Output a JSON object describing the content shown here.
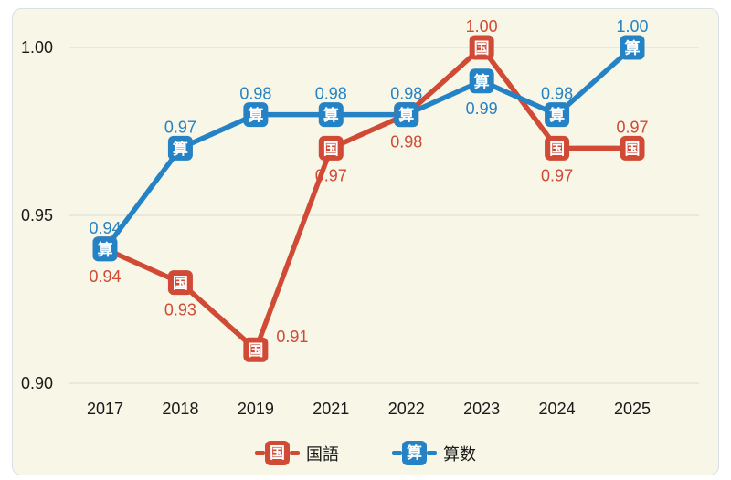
{
  "chart_data": {
    "type": "line",
    "title": "",
    "categories": [
      "2017",
      "2018",
      "2019",
      "2021",
      "2022",
      "2023",
      "2024",
      "2025"
    ],
    "series": [
      {
        "name": "国語",
        "marker_glyph": "国",
        "color": "#D04A35",
        "marker_text_color": "#FFFFFF",
        "values": [
          0.94,
          0.93,
          0.91,
          0.97,
          0.98,
          1.0,
          0.97,
          0.97
        ],
        "label_positions": [
          "below",
          "below",
          "right",
          "below",
          "below",
          "above",
          "below",
          "above"
        ]
      },
      {
        "name": "算数",
        "marker_glyph": "算",
        "color": "#2583C5",
        "marker_text_color": "#FFFFFF",
        "values": [
          0.94,
          0.97,
          0.98,
          0.98,
          0.98,
          0.99,
          0.98,
          1.0
        ],
        "label_positions": [
          "above",
          "above",
          "above",
          "above",
          "above",
          "below",
          "above",
          "above"
        ]
      }
    ],
    "y_axis": {
      "min": 0.9,
      "max": 1.0,
      "ticks": [
        1.0,
        0.95,
        0.9
      ],
      "tick_labels": [
        "1.00",
        "0.95",
        "0.90"
      ]
    },
    "grid": true,
    "value_format": "two-decimals",
    "legend": {
      "position": "bottom",
      "items": [
        {
          "label": "国語",
          "glyph": "国",
          "color": "#D04A35"
        },
        {
          "label": "算数",
          "glyph": "算",
          "color": "#2583C5"
        }
      ]
    }
  },
  "style": {
    "panel_background": "#F7F6E7",
    "panel_border": "#D9E0E6",
    "gridline_color": "#E4E4DA",
    "axis_text_color": "#1A1A1A"
  }
}
